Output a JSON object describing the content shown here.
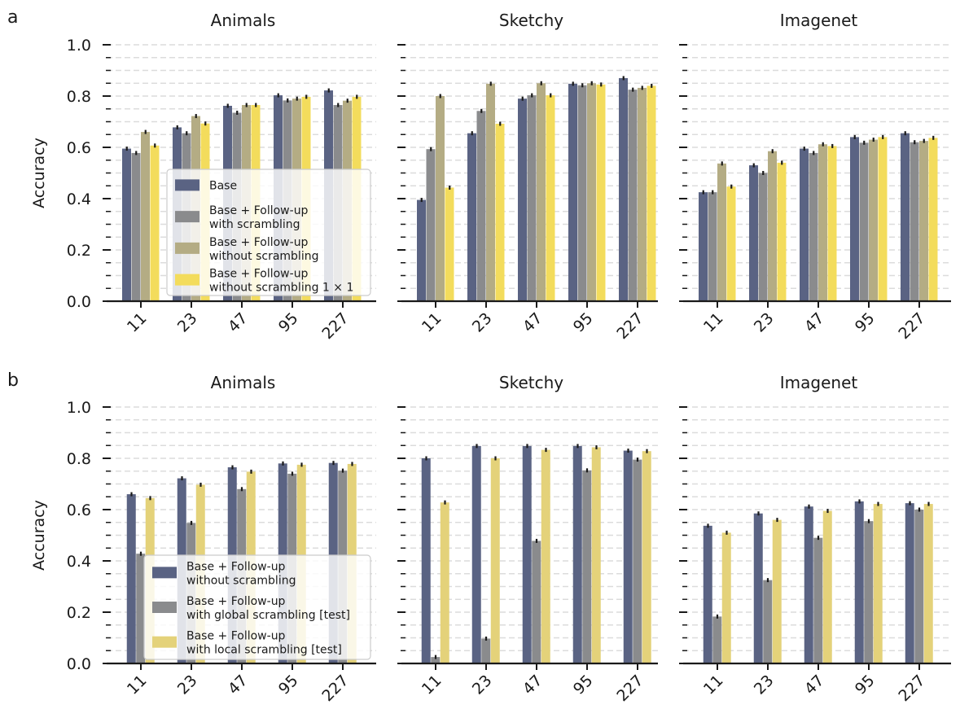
{
  "chart_data": [
    {
      "panel_letter": "a",
      "type": "bar",
      "ylabel": "Accuracy",
      "ylim": [
        0,
        1
      ],
      "yticks": [
        "0.0",
        "0.2",
        "0.4",
        "0.6",
        "0.8",
        "1.0"
      ],
      "categories": [
        "11",
        "23",
        "47",
        "95",
        "227"
      ],
      "legend_placement": "lower-center of first subplot",
      "grid": "horizontal dashed",
      "series": [
        {
          "name": "Base",
          "color": "#5a6383"
        },
        {
          "name": "Base + Follow-up\nwith scrambling",
          "color": "#8a8b8d"
        },
        {
          "name": "Base + Follow-up\nwithout scrambling",
          "color": "#b4ac84"
        },
        {
          "name": "Base + Follow-up\nwithout scrambling 1 × 1",
          "color": "#f3dc5c"
        }
      ],
      "subplots": [
        {
          "title": "Animals",
          "values": [
            [
              0.595,
              0.678,
              0.762,
              0.803,
              0.822
            ],
            [
              0.578,
              0.655,
              0.735,
              0.783,
              0.765
            ],
            [
              0.66,
              0.722,
              0.765,
              0.79,
              0.782
            ],
            [
              0.607,
              0.693,
              0.765,
              0.797,
              0.797
            ]
          ]
        },
        {
          "title": "Sketchy",
          "values": [
            [
              0.395,
              0.655,
              0.79,
              0.848,
              0.87
            ],
            [
              0.593,
              0.742,
              0.803,
              0.842,
              0.825
            ],
            [
              0.8,
              0.848,
              0.85,
              0.85,
              0.832
            ],
            [
              0.443,
              0.692,
              0.803,
              0.845,
              0.84
            ]
          ]
        },
        {
          "title": "Imagenet",
          "values": [
            [
              0.425,
              0.53,
              0.595,
              0.64,
              0.655
            ],
            [
              0.425,
              0.5,
              0.578,
              0.618,
              0.62
            ],
            [
              0.537,
              0.585,
              0.612,
              0.63,
              0.625
            ],
            [
              0.447,
              0.54,
              0.605,
              0.64,
              0.637
            ]
          ]
        }
      ]
    },
    {
      "panel_letter": "b",
      "type": "bar",
      "ylabel": "Accuracy",
      "ylim": [
        0,
        1
      ],
      "yticks": [
        "0.0",
        "0.2",
        "0.4",
        "0.6",
        "0.8",
        "1.0"
      ],
      "categories": [
        "11",
        "23",
        "47",
        "95",
        "227"
      ],
      "legend_placement": "lower-center of first subplot",
      "grid": "horizontal dashed",
      "series": [
        {
          "name": "Base + Follow-up\nwithout scrambling",
          "color": "#5a6383"
        },
        {
          "name": "Base + Follow-up\nwith global scrambling [test]",
          "color": "#8a8b8d"
        },
        {
          "name": "Base + Follow-up\nwith local scrambling [test]",
          "color": "#e4d27a"
        }
      ],
      "subplots": [
        {
          "title": "Animals",
          "values": [
            [
              0.66,
              0.722,
              0.765,
              0.78,
              0.782
            ],
            [
              0.428,
              0.548,
              0.68,
              0.74,
              0.752
            ],
            [
              0.645,
              0.697,
              0.748,
              0.775,
              0.778
            ]
          ]
        },
        {
          "title": "Sketchy",
          "values": [
            [
              0.8,
              0.848,
              0.848,
              0.848,
              0.83
            ],
            [
              0.025,
              0.097,
              0.478,
              0.753,
              0.795
            ],
            [
              0.628,
              0.8,
              0.833,
              0.843,
              0.828
            ]
          ]
        },
        {
          "title": "Imagenet",
          "values": [
            [
              0.537,
              0.585,
              0.612,
              0.632,
              0.625
            ],
            [
              0.183,
              0.325,
              0.49,
              0.555,
              0.6
            ],
            [
              0.51,
              0.56,
              0.595,
              0.622,
              0.622
            ]
          ]
        }
      ]
    }
  ]
}
